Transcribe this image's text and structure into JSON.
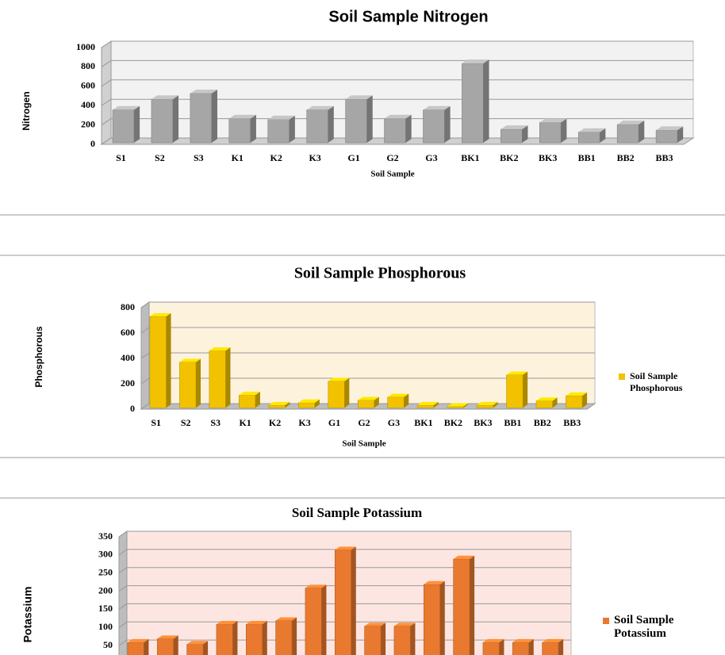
{
  "chart_data": [
    {
      "type": "bar3d",
      "title": "Soil Sample Nitrogen",
      "x_label": "Soil Sample",
      "y_label": "Nitrogen",
      "categories": [
        "S1",
        "S2",
        "S3",
        "K1",
        "K2",
        "K3",
        "G1",
        "G2",
        "G3",
        "BK1",
        "BK2",
        "BK3",
        "BB1",
        "BB2",
        "BB3"
      ],
      "values": [
        340,
        450,
        510,
        250,
        240,
        340,
        450,
        250,
        340,
        820,
        140,
        210,
        110,
        190,
        130
      ],
      "color": "#a6a6a6",
      "ylim": [
        0,
        1000
      ],
      "yticks": [
        0,
        200,
        400,
        600,
        800,
        1000
      ],
      "grid": true
    },
    {
      "type": "bar3d",
      "title": "Soil Sample Phosphorous",
      "x_label": "Soil Sample",
      "y_label": "Phosphorous",
      "categories": [
        "S1",
        "S2",
        "S3",
        "K1",
        "K2",
        "K3",
        "G1",
        "G2",
        "G3",
        "BK1",
        "BK2",
        "BK3",
        "BB1",
        "BB2",
        "BB3"
      ],
      "series": [
        {
          "name": "Soil Sample Phosphorous",
          "color": "#f2c200",
          "values": [
            720,
            360,
            450,
            100,
            20,
            40,
            210,
            60,
            85,
            20,
            10,
            20,
            260,
            55,
            95
          ]
        }
      ],
      "ylim": [
        0,
        800
      ],
      "yticks": [
        0,
        200,
        400,
        600,
        800
      ],
      "grid": true,
      "legend": "right"
    },
    {
      "type": "bar3d",
      "title": "Soil Sample Potassium",
      "y_label": "Potassium",
      "series": [
        {
          "name": "Soil Sample Potassium",
          "color": "#e8792f",
          "values": [
            55,
            65,
            50,
            105,
            105,
            115,
            205,
            310,
            100,
            100,
            215,
            285,
            55,
            55,
            55
          ]
        }
      ],
      "ylim": [
        0,
        350
      ],
      "yticks": [
        50,
        100,
        150,
        200,
        250,
        300,
        350
      ],
      "grid": true,
      "legend": "right"
    }
  ]
}
